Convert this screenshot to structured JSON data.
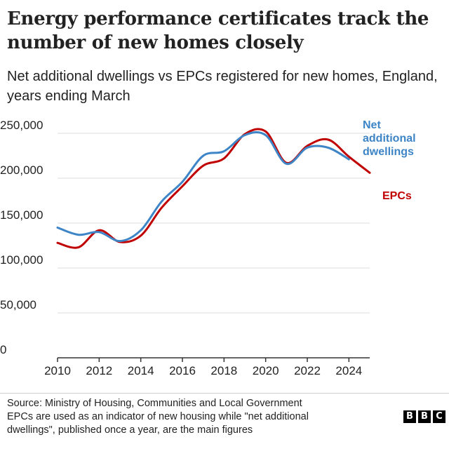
{
  "title": "Energy performance certificates track the number of new homes closely",
  "subtitle": "Net additional dwellings vs EPCs registered for new homes, England, years ending March",
  "chart_data": {
    "type": "line",
    "ylim": [
      0,
      250000
    ],
    "xlim": [
      2010,
      2025
    ],
    "yticks": [
      0,
      50000,
      100000,
      150000,
      200000,
      250000
    ],
    "ytick_labels": [
      "0",
      "50,000",
      "100,000",
      "150,000",
      "200,000",
      "250,000"
    ],
    "xticks": [
      2010,
      2012,
      2014,
      2016,
      2018,
      2020,
      2022,
      2024
    ],
    "xtick_labels": [
      "2010",
      "2012",
      "2014",
      "2016",
      "2018",
      "2020",
      "2022",
      "2024"
    ],
    "grid": "horizontal",
    "series": [
      {
        "name": "EPCs",
        "color": "#c00000",
        "label_lines": [
          "EPCs"
        ],
        "x": [
          2010,
          2011,
          2012,
          2013,
          2014,
          2015,
          2016,
          2017,
          2018,
          2019,
          2020,
          2021,
          2022,
          2023,
          2024,
          2025
        ],
        "values": [
          128000,
          123000,
          142000,
          129000,
          136000,
          167000,
          191000,
          214000,
          222000,
          249000,
          252000,
          217000,
          236000,
          243000,
          224000,
          206000
        ]
      },
      {
        "name": "Net additional dwellings",
        "color": "#3d85c6",
        "label_lines": [
          "Net",
          "additional",
          "dwellings"
        ],
        "x": [
          2010,
          2011,
          2012,
          2013,
          2014,
          2015,
          2016,
          2017,
          2018,
          2019,
          2020,
          2021,
          2022,
          2023,
          2024
        ],
        "values": [
          145000,
          137000,
          140000,
          130000,
          142000,
          174000,
          196000,
          225000,
          230000,
          248000,
          248000,
          216000,
          234000,
          234000,
          221000
        ]
      }
    ]
  },
  "footer": {
    "source": "Source: Ministry of Housing, Communities and Local Government",
    "note_line1": "EPCs are used as an indicator of new housing while \"net additional",
    "note_line2": "dwellings\", published once a year, are the main figures"
  },
  "logo": {
    "letters": [
      "B",
      "B",
      "C"
    ]
  }
}
